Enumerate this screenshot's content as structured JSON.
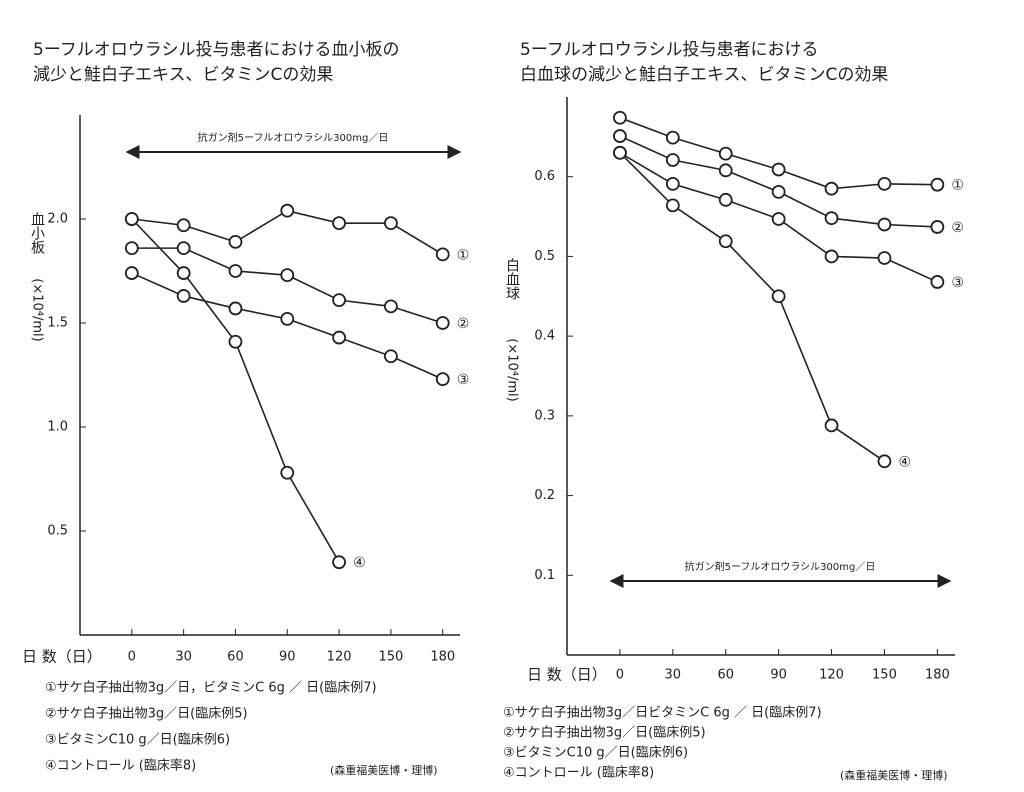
{
  "chart_data": [
    {
      "type": "line",
      "title": [
        "5ーフルオロウラシル投与患者における血小板の",
        "減少と鮭白子エキス、ビタミンCの効果"
      ],
      "y_label": "血小板",
      "y_unit": "(×10⁴/ml)",
      "x_label": "日 数（日）",
      "annotation": "抗ガン剤5ーフルオロウラシル300mg／日",
      "credit": "(森重福美医博・理博)",
      "x": [
        0,
        30,
        60,
        90,
        120,
        150,
        180
      ],
      "xlim": [
        -30,
        190
      ],
      "xticks": [
        0,
        30,
        60,
        90,
        120,
        150,
        180
      ],
      "ylim": [
        0,
        2.5
      ],
      "yticks": [
        0.5,
        {
          "value": 1,
          "label": "1.0"
        },
        1.5,
        {
          "value": 2,
          "label": "2.0"
        }
      ],
      "series": [
        {
          "name": "①サケ白子抽出物3g／日，ビタミンC 6g ／ 日(臨床例7)",
          "label": "①",
          "color": "#222",
          "values": [
            2.0,
            1.97,
            1.89,
            2.04,
            1.98,
            1.98,
            1.83
          ]
        },
        {
          "name": "②サケ白子抽出物3g／日(臨床例5)",
          "label": "②",
          "color": "#222",
          "values": [
            1.86,
            1.86,
            1.75,
            1.73,
            1.61,
            1.58,
            1.5
          ]
        },
        {
          "name": "③ビタミンC10 g／日(臨床例6)",
          "label": "③",
          "color": "#222",
          "values": [
            1.74,
            1.63,
            1.57,
            1.52,
            1.43,
            1.34,
            1.23
          ]
        },
        {
          "name": "④コントロール (臨床率8)",
          "label": "④",
          "color": "#222",
          "values": [
            2.0,
            1.74,
            1.41,
            0.78,
            0.35,
            null,
            null
          ]
        }
      ]
    },
    {
      "type": "line",
      "title": [
        "5ーフルオロウラシル投与患者における",
        "白血球の減少と鮭白子エキス、ビタミンCの効果"
      ],
      "y_label": "白血球",
      "y_unit": "(×10⁴/ml)",
      "x_label": "日 数（日）",
      "annotation": "抗ガン剤5ーフルオロウラシル300mg／日",
      "credit": "(森重福美医博・理博)",
      "x": [
        0,
        30,
        60,
        90,
        120,
        150,
        180
      ],
      "xlim": [
        -30,
        190
      ],
      "xticks": [
        0,
        30,
        60,
        90,
        120,
        150,
        180
      ],
      "ylim": [
        0,
        0.7
      ],
      "yticks": [
        0.1,
        0.2,
        0.3,
        0.4,
        0.5,
        0.6
      ],
      "series": [
        {
          "name": "①サケ白子抽出物3g／日ビタミンC 6g ／ 日(臨床例7)",
          "label": "①",
          "color": "#222",
          "values": [
            0.674,
            0.649,
            0.629,
            0.609,
            0.585,
            0.591,
            0.59
          ]
        },
        {
          "name": "②サケ白子抽出物3g／日(臨床例5)",
          "label": "②",
          "color": "#222",
          "values": [
            0.651,
            0.621,
            0.608,
            0.581,
            0.548,
            0.54,
            0.537
          ]
        },
        {
          "name": "③ビタミンC10 g／日(臨床例6)",
          "label": "③",
          "color": "#222",
          "values": [
            0.63,
            0.591,
            0.571,
            0.547,
            0.5,
            0.498,
            0.468
          ]
        },
        {
          "name": "④コントロール (臨床率8)",
          "label": "④",
          "color": "#222",
          "values": [
            0.63,
            0.564,
            0.519,
            0.45,
            0.288,
            0.243,
            null
          ]
        }
      ]
    }
  ]
}
